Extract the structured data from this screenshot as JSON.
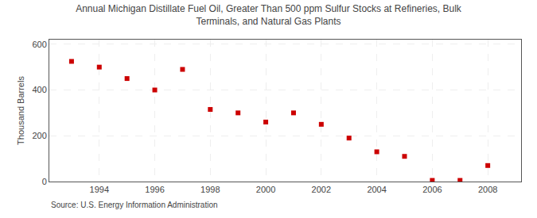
{
  "chart_data": {
    "type": "scatter",
    "title": "Annual Michigan Distillate Fuel Oil, Greater Than 500 ppm Sulfur Stocks at Refineries, Bulk\nTerminals, and Natural Gas Plants",
    "ylabel": "Thousand Barrels",
    "annotation": "Source: U.S. Energy Information Administration",
    "x": [
      1993,
      1994,
      1995,
      1996,
      1997,
      1998,
      1999,
      2000,
      2001,
      2002,
      2003,
      2004,
      2005,
      2006,
      2007,
      2008
    ],
    "values": [
      525,
      500,
      450,
      400,
      490,
      315,
      300,
      260,
      300,
      250,
      190,
      130,
      110,
      5,
      5,
      70
    ],
    "color": "#cc0000",
    "marker": "square",
    "grid": true,
    "xlim": [
      1992.2,
      2009.2
    ],
    "ylim": [
      0,
      620
    ],
    "xticks": [
      1994,
      1996,
      1998,
      2000,
      2002,
      2004,
      2006,
      2008
    ],
    "yticks": [
      0,
      200,
      400,
      600
    ]
  }
}
